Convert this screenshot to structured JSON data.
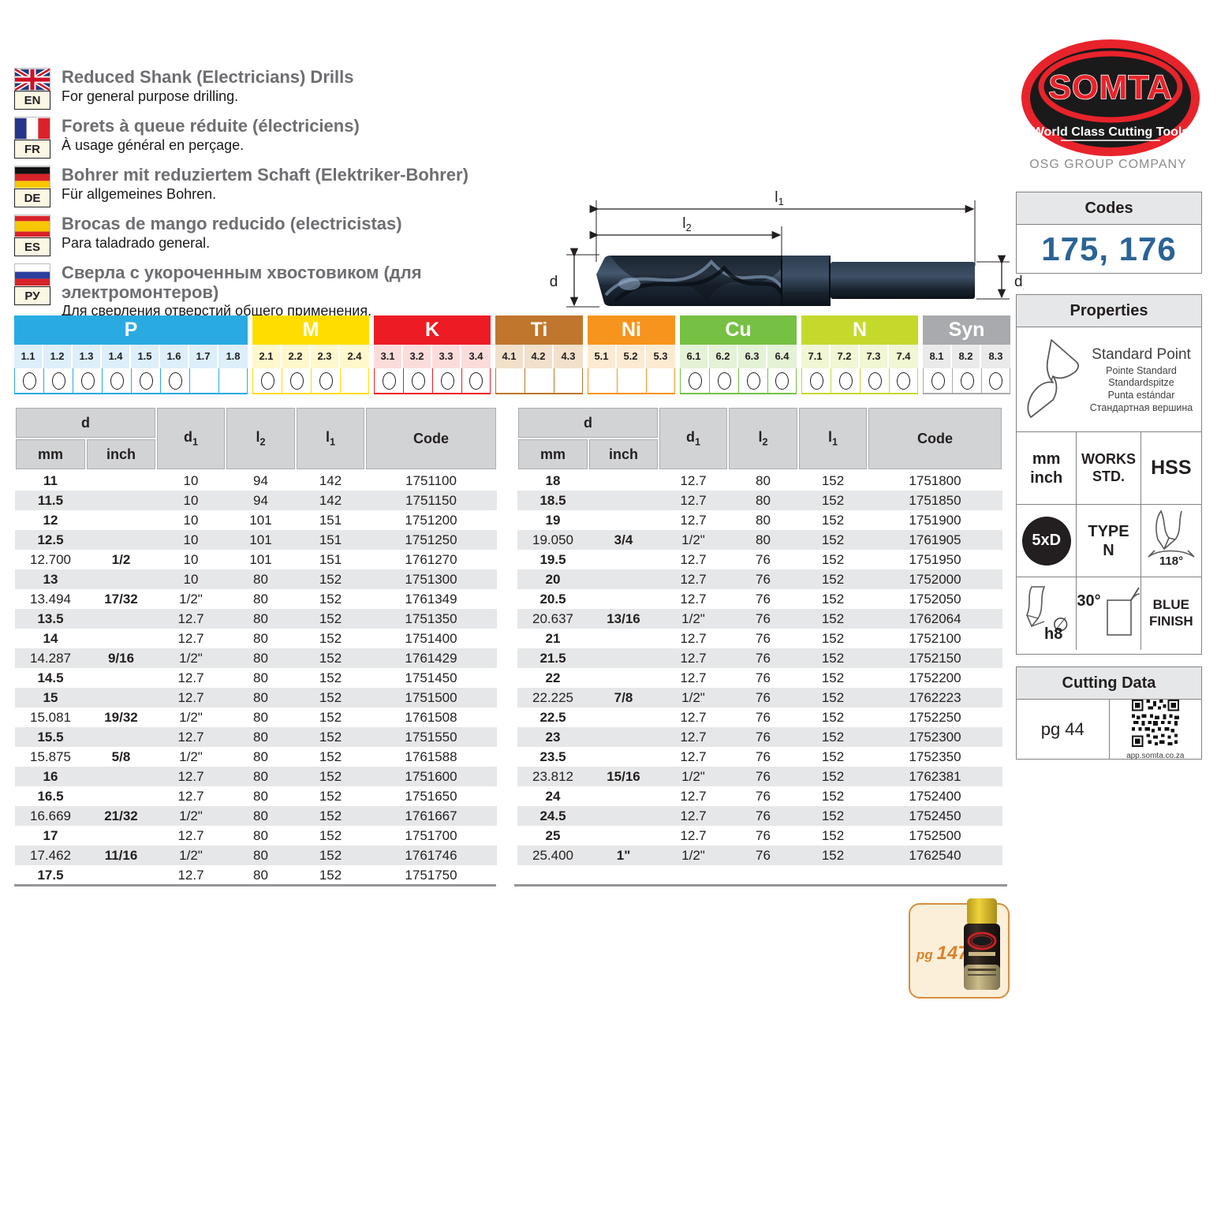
{
  "header": {
    "languages": [
      {
        "code": "EN",
        "flag": "uk",
        "title": "Reduced Shank (Electricians) Drills",
        "subtitle": "For general purpose drilling."
      },
      {
        "code": "FR",
        "flag": "fr",
        "title": "Forets à queue réduite (électriciens)",
        "subtitle": "À usage général en perçage."
      },
      {
        "code": "DE",
        "flag": "de",
        "title": "Bohrer mit reduziertem Schaft (Elektriker-Bohrer)",
        "subtitle": "Für allgemeines Bohren."
      },
      {
        "code": "ES",
        "flag": "es",
        "title": "Brocas de mango reducido (electricistas)",
        "subtitle": "Para taladrado general."
      },
      {
        "code": "РУ",
        "flag": "ru",
        "title": "Сверла с укороченным хвостовиком (для электромонтеров)",
        "subtitle": "Для сверления отверстий общего применения."
      }
    ]
  },
  "brand": {
    "logo_text": "SOMTA",
    "logo_tagline": "World Class Cutting Tools",
    "company": "OSG GROUP COMPANY"
  },
  "codes": {
    "label": "Codes",
    "value": "175, 176",
    "value_color": "#2A6396"
  },
  "properties": {
    "title": "Properties",
    "point_name": "Standard Point",
    "point_tr1": "Pointe Standard",
    "point_tr2": "Standardspitze",
    "point_tr3": "Punta estándar",
    "point_tr4": "Стандартная вершина",
    "unit_line1": "mm",
    "unit_line2": "inch",
    "works_line1": "WORKS",
    "works_line2": "STD.",
    "hss": "HSS",
    "ratio": "5xD",
    "type_line1": "TYPE",
    "type_line2": "N",
    "tip_angle": "118°",
    "tolerance": "h8",
    "helix_angle": "30°",
    "finish_line1": "BLUE",
    "finish_line2": "FINISH"
  },
  "cutting_data": {
    "label": "Cutting Data",
    "page_ref": "pg 44",
    "qr_caption": "app.somta.co.za"
  },
  "diagram": {
    "labels": {
      "d": {
        "base": "d",
        "sub": ""
      },
      "d1": {
        "base": "d",
        "sub": "1"
      },
      "l1": {
        "base": "l",
        "sub": "1"
      },
      "l2": {
        "base": "l",
        "sub": "2"
      }
    }
  },
  "material_chart": {
    "groups": [
      {
        "name": "P",
        "color": "#29ABE2",
        "tint": "#DCEFFA",
        "cells": [
          "1.1",
          "1.2",
          "1.3",
          "1.4",
          "1.5",
          "1.6",
          "1.7",
          "1.8"
        ],
        "marked": [
          true,
          true,
          true,
          true,
          true,
          true,
          false,
          false
        ]
      },
      {
        "name": "M",
        "color": "#FFDD00",
        "tint": "#FFF8CC",
        "cells": [
          "2.1",
          "2.2",
          "2.3",
          "2.4"
        ],
        "marked": [
          true,
          true,
          true,
          false
        ]
      },
      {
        "name": "K",
        "color": "#ED1C24",
        "tint": "#FBDCDB",
        "cells": [
          "3.1",
          "3.2",
          "3.3",
          "3.4"
        ],
        "marked": [
          true,
          true,
          true,
          true
        ]
      },
      {
        "name": "Ti",
        "color": "#C0762C",
        "tint": "#F2E0CB",
        "cells": [
          "4.1",
          "4.2",
          "4.3"
        ],
        "marked": [
          false,
          false,
          false
        ]
      },
      {
        "name": "Ni",
        "color": "#F7941D",
        "tint": "#FDEAD2",
        "cells": [
          "5.1",
          "5.2",
          "5.3"
        ],
        "marked": [
          false,
          false,
          false
        ]
      },
      {
        "name": "Cu",
        "color": "#76C043",
        "tint": "#E4F2D6",
        "cells": [
          "6.1",
          "6.2",
          "6.3",
          "6.4"
        ],
        "marked": [
          true,
          true,
          true,
          true
        ]
      },
      {
        "name": "N",
        "color": "#C5D92D",
        "tint": "#F1F6D3",
        "cells": [
          "7.1",
          "7.2",
          "7.3",
          "7.4"
        ],
        "marked": [
          true,
          true,
          true,
          true
        ]
      },
      {
        "name": "Syn",
        "color": "#A8AAAD",
        "tint": "#EAEAEB",
        "cells": [
          "8.1",
          "8.2",
          "8.3"
        ],
        "marked": [
          true,
          true,
          true
        ]
      }
    ]
  },
  "tables": {
    "headers": {
      "d": "d",
      "mm": "mm",
      "inch": "inch",
      "d1": {
        "base": "d",
        "sub": "1"
      },
      "l2": {
        "base": "l",
        "sub": "2"
      },
      "l1": {
        "base": "l",
        "sub": "1"
      },
      "code": "Code"
    },
    "left_rows": [
      [
        "11",
        "",
        "10",
        "94",
        "142",
        "1751100"
      ],
      [
        "11.5",
        "",
        "10",
        "94",
        "142",
        "1751150"
      ],
      [
        "12",
        "",
        "10",
        "101",
        "151",
        "1751200"
      ],
      [
        "12.5",
        "",
        "10",
        "101",
        "151",
        "1751250"
      ],
      [
        "12.700",
        "1/2",
        "10",
        "101",
        "151",
        "1761270"
      ],
      [
        "13",
        "",
        "10",
        "80",
        "152",
        "1751300"
      ],
      [
        "13.494",
        "17/32",
        "1/2\"",
        "80",
        "152",
        "1761349"
      ],
      [
        "13.5",
        "",
        "12.7",
        "80",
        "152",
        "1751350"
      ],
      [
        "14",
        "",
        "12.7",
        "80",
        "152",
        "1751400"
      ],
      [
        "14.287",
        "9/16",
        "1/2\"",
        "80",
        "152",
        "1761429"
      ],
      [
        "14.5",
        "",
        "12.7",
        "80",
        "152",
        "1751450"
      ],
      [
        "15",
        "",
        "12.7",
        "80",
        "152",
        "1751500"
      ],
      [
        "15.081",
        "19/32",
        "1/2\"",
        "80",
        "152",
        "1761508"
      ],
      [
        "15.5",
        "",
        "12.7",
        "80",
        "152",
        "1751550"
      ],
      [
        "15.875",
        "5/8",
        "1/2\"",
        "80",
        "152",
        "1761588"
      ],
      [
        "16",
        "",
        "12.7",
        "80",
        "152",
        "1751600"
      ],
      [
        "16.5",
        "",
        "12.7",
        "80",
        "152",
        "1751650"
      ],
      [
        "16.669",
        "21/32",
        "1/2\"",
        "80",
        "152",
        "1761667"
      ],
      [
        "17",
        "",
        "12.7",
        "80",
        "152",
        "1751700"
      ],
      [
        "17.462",
        "11/16",
        "1/2\"",
        "80",
        "152",
        "1761746"
      ],
      [
        "17.5",
        "",
        "12.7",
        "80",
        "152",
        "1751750"
      ]
    ],
    "right_rows": [
      [
        "18",
        "",
        "12.7",
        "80",
        "152",
        "1751800"
      ],
      [
        "18.5",
        "",
        "12.7",
        "80",
        "152",
        "1751850"
      ],
      [
        "19",
        "",
        "12.7",
        "80",
        "152",
        "1751900"
      ],
      [
        "19.050",
        "3/4",
        "1/2\"",
        "80",
        "152",
        "1761905"
      ],
      [
        "19.5",
        "",
        "12.7",
        "76",
        "152",
        "1751950"
      ],
      [
        "20",
        "",
        "12.7",
        "76",
        "152",
        "1752000"
      ],
      [
        "20.5",
        "",
        "12.7",
        "76",
        "152",
        "1752050"
      ],
      [
        "20.637",
        "13/16",
        "1/2\"",
        "76",
        "152",
        "1762064"
      ],
      [
        "21",
        "",
        "12.7",
        "76",
        "152",
        "1752100"
      ],
      [
        "21.5",
        "",
        "12.7",
        "76",
        "152",
        "1752150"
      ],
      [
        "22",
        "",
        "12.7",
        "76",
        "152",
        "1752200"
      ],
      [
        "22.225",
        "7/8",
        "1/2\"",
        "76",
        "152",
        "1762223"
      ],
      [
        "22.5",
        "",
        "12.7",
        "76",
        "152",
        "1752250"
      ],
      [
        "23",
        "",
        "12.7",
        "76",
        "152",
        "1752300"
      ],
      [
        "23.5",
        "",
        "12.7",
        "76",
        "152",
        "1752350"
      ],
      [
        "23.812",
        "15/16",
        "1/2\"",
        "76",
        "152",
        "1762381"
      ],
      [
        "24",
        "",
        "12.7",
        "76",
        "152",
        "1752400"
      ],
      [
        "24.5",
        "",
        "12.7",
        "76",
        "152",
        "1752450"
      ],
      [
        "25",
        "",
        "12.7",
        "76",
        "152",
        "1752500"
      ],
      [
        "25.400",
        "1\"",
        "1/2\"",
        "76",
        "152",
        "1762540"
      ]
    ]
  },
  "footer": {
    "page_ref_small": "pg",
    "page_ref_num": "147"
  }
}
